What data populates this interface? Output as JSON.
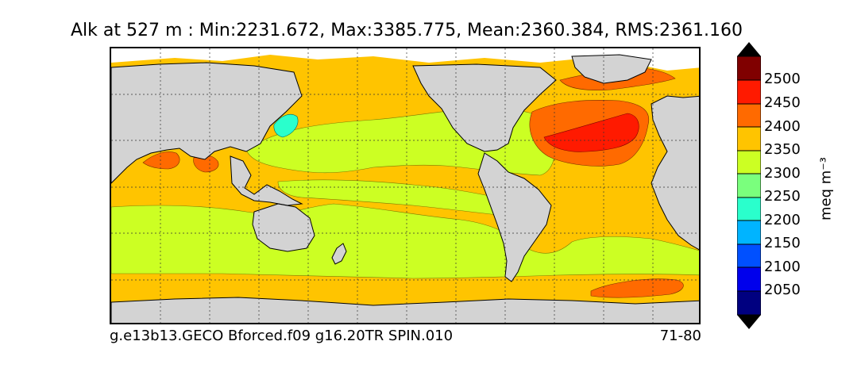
{
  "title": "Alk at 527 m : Min:2231.672, Max:3385.775, Mean:2360.384, RMS:2361.160",
  "footer": {
    "run_name": "g.e13b13.GECO Bforced.f09 g16.20TR SPIN.010",
    "years": "71-80"
  },
  "colorbar": {
    "unit": "meq m⁻³",
    "labels": [
      "2500",
      "2450",
      "2400",
      "2350",
      "2300",
      "2250",
      "2200",
      "2150",
      "2100",
      "2050"
    ],
    "colors": {
      "above_2500": "#800000",
      "c2450": "#ff1a00",
      "c2400": "#ff6a00",
      "c2350": "#ffc400",
      "c2300": "#ccff23",
      "c2250": "#7aff7d",
      "c2200": "#2affcc",
      "c2150": "#00b4ff",
      "c2100": "#0050ff",
      "c2050": "#0000ec",
      "below_2050": "#000080"
    }
  },
  "map": {
    "land_color": "#d3d3d3",
    "ice_color": "#ffffff",
    "gridlines": "dotted",
    "projection": "global lon-lat, Pacific-centered"
  }
}
